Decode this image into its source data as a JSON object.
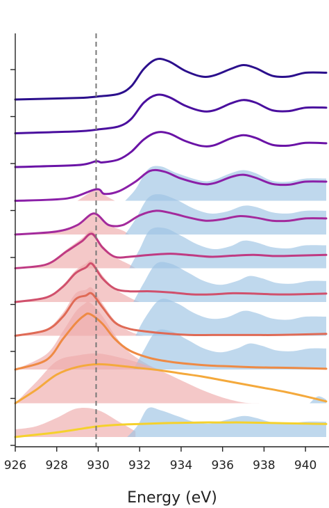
{
  "chart_data": {
    "type": "line",
    "title": "",
    "xlabel": "Energy (eV)",
    "ylabel": "",
    "xlim": [
      926,
      941
    ],
    "xticks": [
      926,
      928,
      930,
      932,
      934,
      936,
      938,
      940
    ],
    "xtick_labels": [
      "926",
      "928",
      "930",
      "932",
      "934",
      "936",
      "938",
      "940"
    ],
    "y_tick_count": 9,
    "reference_line_x": 929.9,
    "colors": {
      "background": "#ffffff",
      "axis": "#222222",
      "reference_line": "#777777",
      "fill_low_energy": "#eeaaaa",
      "fill_high_energy": "#9cc3e3"
    },
    "series": [
      {
        "color": "#2b0f8c",
        "offset": 10,
        "x": [
          926,
          929,
          930,
          931,
          931.6,
          932.2,
          932.8,
          933.4,
          934.2,
          935,
          935.6,
          936.4,
          937,
          937.6,
          938.4,
          939.2,
          940,
          941
        ],
        "y": [
          0,
          0.04,
          0.08,
          0.15,
          0.35,
          0.8,
          1.05,
          1.0,
          0.75,
          0.6,
          0.63,
          0.8,
          0.9,
          0.82,
          0.62,
          0.6,
          0.7,
          0.7
        ]
      },
      {
        "color": "#4a0f9e",
        "offset": 9,
        "x": [
          926,
          929,
          930,
          931,
          931.6,
          932.2,
          932.8,
          933.4,
          934.2,
          935,
          935.6,
          936.4,
          937,
          937.6,
          938.4,
          939.2,
          940,
          941
        ],
        "y": [
          0,
          0.05,
          0.1,
          0.18,
          0.38,
          0.8,
          1.0,
          0.95,
          0.72,
          0.58,
          0.6,
          0.78,
          0.87,
          0.8,
          0.6,
          0.58,
          0.67,
          0.67
        ]
      },
      {
        "color": "#6a13a6",
        "offset": 8,
        "x": [
          926,
          929,
          929.9,
          930.2,
          931,
          931.6,
          932.2,
          932.8,
          933.4,
          934.2,
          935,
          935.6,
          936.4,
          937,
          937.6,
          938.4,
          939.2,
          940,
          941
        ],
        "y": [
          0,
          0.05,
          0.15,
          0.12,
          0.2,
          0.4,
          0.72,
          0.9,
          0.88,
          0.68,
          0.55,
          0.57,
          0.75,
          0.83,
          0.76,
          0.58,
          0.56,
          0.63,
          0.62
        ]
      },
      {
        "color": "#8a1fa8",
        "offset": 7,
        "x": [
          926,
          928.5,
          929.9,
          930.3,
          931,
          931.8,
          932.5,
          933.2,
          934,
          935,
          935.6,
          936.4,
          937,
          937.6,
          938.4,
          939.2,
          940,
          941
        ],
        "y": [
          0,
          0.06,
          0.3,
          0.18,
          0.25,
          0.5,
          0.78,
          0.76,
          0.58,
          0.44,
          0.46,
          0.62,
          0.68,
          0.6,
          0.44,
          0.42,
          0.5,
          0.5
        ],
        "fills": [
          {
            "color": "#eeaaaa",
            "x": [
              929,
              929.5,
              929.9,
              930.3,
              930.8
            ],
            "y": [
              0,
              0.18,
              0.3,
              0.15,
              0
            ]
          },
          {
            "color": "#9cc3e3",
            "x": [
              931.3,
              931.8,
              932.4,
              933,
              933.8,
              935,
              935.6,
              936.4,
              937,
              937.6,
              938.4,
              939.2,
              940,
              941
            ],
            "y": [
              0,
              0.3,
              0.82,
              0.9,
              0.72,
              0.52,
              0.55,
              0.72,
              0.8,
              0.72,
              0.52,
              0.5,
              0.58,
              0.58
            ]
          }
        ]
      },
      {
        "color": "#a32a9c",
        "offset": 6,
        "x": [
          926,
          928,
          929,
          929.8,
          930.5,
          931.2,
          932,
          932.8,
          933.6,
          934.4,
          935.2,
          936,
          936.8,
          937.6,
          938.4,
          939.2,
          940,
          941
        ],
        "y": [
          0,
          0.08,
          0.25,
          0.55,
          0.25,
          0.25,
          0.5,
          0.62,
          0.55,
          0.44,
          0.36,
          0.4,
          0.48,
          0.44,
          0.36,
          0.36,
          0.42,
          0.42
        ],
        "fills": [
          {
            "color": "#eeaaaa",
            "x": [
              926,
              928,
              929,
              929.8,
              930.5,
              931.2,
              931.5
            ],
            "y": [
              0,
              0.08,
              0.25,
              0.55,
              0.25,
              0.1,
              0
            ]
          },
          {
            "color": "#9cc3e3",
            "x": [
              931.3,
              931.8,
              932.4,
              933,
              933.8,
              934.6,
              935.4,
              936.2,
              937,
              937.6,
              938.4,
              939.2,
              940,
              941
            ],
            "y": [
              0,
              0.4,
              0.95,
              1.05,
              0.9,
              0.68,
              0.55,
              0.6,
              0.75,
              0.72,
              0.58,
              0.55,
              0.62,
              0.62
            ]
          }
        ]
      },
      {
        "color": "#bf3a82",
        "offset": 5,
        "x": [
          926,
          927.5,
          928.5,
          929.2,
          929.7,
          930.2,
          930.8,
          931.5,
          932.5,
          933.5,
          934.5,
          935.5,
          936.5,
          937.5,
          938.5,
          939.5,
          941
        ],
        "y": [
          0,
          0.1,
          0.45,
          0.7,
          0.9,
          0.55,
          0.3,
          0.3,
          0.35,
          0.38,
          0.34,
          0.3,
          0.33,
          0.35,
          0.32,
          0.33,
          0.35
        ],
        "fills": [
          {
            "color": "#eeaaaa",
            "x": [
              926,
              927.5,
              928.5,
              929.2,
              929.7,
              930.2,
              930.8,
              931.5,
              931.8
            ],
            "y": [
              0,
              0.12,
              0.5,
              0.78,
              0.98,
              0.6,
              0.3,
              0.1,
              0
            ]
          },
          {
            "color": "#9cc3e3",
            "x": [
              931.5,
              932,
              932.5,
              933.2,
              934,
              934.8,
              935.6,
              936.4,
              937,
              937.6,
              938.4,
              939.2,
              940,
              941
            ],
            "y": [
              0,
              0.5,
              1.0,
              1.05,
              0.85,
              0.62,
              0.5,
              0.58,
              0.72,
              0.68,
              0.55,
              0.52,
              0.6,
              0.6
            ]
          }
        ]
      },
      {
        "color": "#d0506c",
        "offset": 4,
        "x": [
          926,
          927.5,
          928.3,
          928.9,
          929.4,
          929.7,
          930.2,
          930.8,
          931.5,
          932.5,
          933.5,
          934.5,
          935.5,
          936.5,
          937.5,
          938.5,
          939.5,
          941
        ],
        "y": [
          0,
          0.12,
          0.4,
          0.75,
          0.9,
          1.0,
          0.62,
          0.35,
          0.28,
          0.28,
          0.25,
          0.2,
          0.2,
          0.23,
          0.22,
          0.2,
          0.2,
          0.22
        ],
        "fills": [
          {
            "color": "#eeaaaa",
            "x": [
              926,
              927.5,
              928.3,
              928.9,
              929.4,
              929.7,
              930.2,
              930.8,
              931.5,
              932
            ],
            "y": [
              0,
              0.14,
              0.45,
              0.82,
              1.0,
              1.08,
              0.7,
              0.35,
              0.12,
              0
            ]
          },
          {
            "color": "#9cc3e3",
            "x": [
              931.7,
              932.2,
              932.8,
              933.5,
              934.3,
              935.1,
              935.9,
              936.7,
              937.3,
              937.9,
              938.6,
              939.4,
              940.2,
              941
            ],
            "y": [
              0,
              0.5,
              1.0,
              1.0,
              0.78,
              0.55,
              0.45,
              0.55,
              0.68,
              0.62,
              0.5,
              0.48,
              0.55,
              0.55
            ]
          }
        ]
      },
      {
        "color": "#df6a55",
        "offset": 3,
        "x": [
          926,
          927.5,
          928.3,
          928.9,
          929.4,
          929.7,
          930.2,
          930.8,
          931.5,
          932.5,
          933.5,
          934.5,
          935.5,
          936.5,
          937.5,
          938.5,
          939.5,
          941
        ],
        "y": [
          0,
          0.15,
          0.5,
          0.95,
          1.05,
          1.1,
          0.75,
          0.35,
          0.18,
          0.1,
          0.05,
          0.02,
          0.02,
          0.02,
          0.02,
          0.02,
          0.03,
          0.05
        ],
        "fills": [
          {
            "color": "#eeaaaa",
            "x": [
              926,
              927.5,
              928.3,
              928.9,
              929.4,
              929.7,
              930.2,
              930.8,
              931.5,
              932.2
            ],
            "y": [
              0,
              0.18,
              0.6,
              1.1,
              1.2,
              1.25,
              0.85,
              0.4,
              0.12,
              0
            ]
          },
          {
            "color": "#9cc3e3",
            "x": [
              931.8,
              932.3,
              933,
              933.8,
              934.6,
              935.4,
              936.2,
              937,
              937.6,
              938.4,
              939.2,
              940,
              941
            ],
            "y": [
              0,
              0.5,
              0.95,
              0.85,
              0.6,
              0.45,
              0.48,
              0.65,
              0.6,
              0.45,
              0.42,
              0.5,
              0.5
            ]
          }
        ]
      },
      {
        "color": "#ee8a44",
        "offset": 2,
        "x": [
          926,
          927.5,
          928.3,
          928.9,
          929.3,
          929.6,
          930.2,
          930.8,
          931.5,
          932.5,
          933.5,
          934.5,
          935.5,
          936.5,
          937.5,
          938.5,
          939.5,
          941
        ],
        "y": [
          0,
          0.25,
          0.8,
          1.2,
          1.4,
          1.45,
          1.2,
          0.8,
          0.5,
          0.3,
          0.2,
          0.14,
          0.1,
          0.08,
          0.06,
          0.05,
          0.04,
          0.02
        ],
        "fills": [
          {
            "color": "#eeaaaa",
            "x": [
              926,
              927.5,
              928.3,
              928.9,
              929.3,
              929.6,
              930.2,
              930.8,
              931.5,
              932.5,
              933
            ],
            "y": [
              0,
              0.4,
              1.0,
              1.5,
              1.7,
              1.75,
              1.4,
              0.9,
              0.45,
              0.1,
              0
            ]
          },
          {
            "color": "#9cc3e3",
            "x": [
              931.7,
              932.2,
              932.8,
              933.5,
              934.3,
              935.1,
              935.9,
              936.7,
              937.3,
              937.9,
              938.6,
              939.4,
              940.2,
              941
            ],
            "y": [
              0,
              0.5,
              1.0,
              1.0,
              0.78,
              0.55,
              0.45,
              0.55,
              0.68,
              0.62,
              0.5,
              0.48,
              0.55,
              0.55
            ]
          }
        ]
      },
      {
        "color": "#f4a93c",
        "offset": 1,
        "x": [
          926,
          927,
          928,
          929,
          930,
          931,
          932,
          933,
          934,
          935,
          936,
          937,
          938,
          939,
          940,
          941
        ],
        "y": [
          0,
          0.35,
          0.75,
          0.95,
          1.02,
          0.98,
          0.92,
          0.86,
          0.78,
          0.7,
          0.6,
          0.5,
          0.4,
          0.3,
          0.18,
          0.05
        ],
        "fills": [
          {
            "color": "#eeaaaa",
            "x": [
              926,
              927,
              928,
              929,
              930,
              931,
              932,
              933,
              934,
              935,
              936,
              937,
              937.8
            ],
            "y": [
              0,
              0.55,
              1.1,
              1.25,
              1.3,
              1.2,
              1.05,
              0.85,
              0.6,
              0.35,
              0.15,
              0.02,
              0
            ]
          },
          {
            "color": "#9cc3e3",
            "x": [
              940.2,
              940.6,
              941
            ],
            "y": [
              0,
              0.18,
              0.1
            ]
          }
        ]
      },
      {
        "color": "#f5d12c",
        "offset": 0,
        "x": [
          926,
          927,
          928,
          929,
          930,
          931,
          932,
          933,
          934,
          935,
          936,
          937,
          938,
          939,
          940,
          941
        ],
        "y": [
          0,
          0.06,
          0.12,
          0.2,
          0.28,
          0.32,
          0.34,
          0.36,
          0.37,
          0.38,
          0.38,
          0.38,
          0.37,
          0.36,
          0.35,
          0.34
        ],
        "fills": [
          {
            "color": "#eeaaaa",
            "x": [
              926,
              927,
              928,
              929,
              930,
              931,
              931.8
            ],
            "y": [
              0.2,
              0.28,
              0.5,
              0.75,
              0.7,
              0.4,
              0.15
            ]
          },
          {
            "color": "#9cc3e3",
            "x": [
              931.4,
              931.9,
              932.4,
              933,
              933.8,
              934.6,
              935.4,
              936.2,
              937,
              937.6,
              938.4,
              939.2,
              940,
              941
            ],
            "y": [
              0,
              0.3,
              0.75,
              0.7,
              0.55,
              0.4,
              0.35,
              0.45,
              0.55,
              0.5,
              0.38,
              0.35,
              0.4,
              0.4
            ]
          }
        ]
      }
    ]
  }
}
